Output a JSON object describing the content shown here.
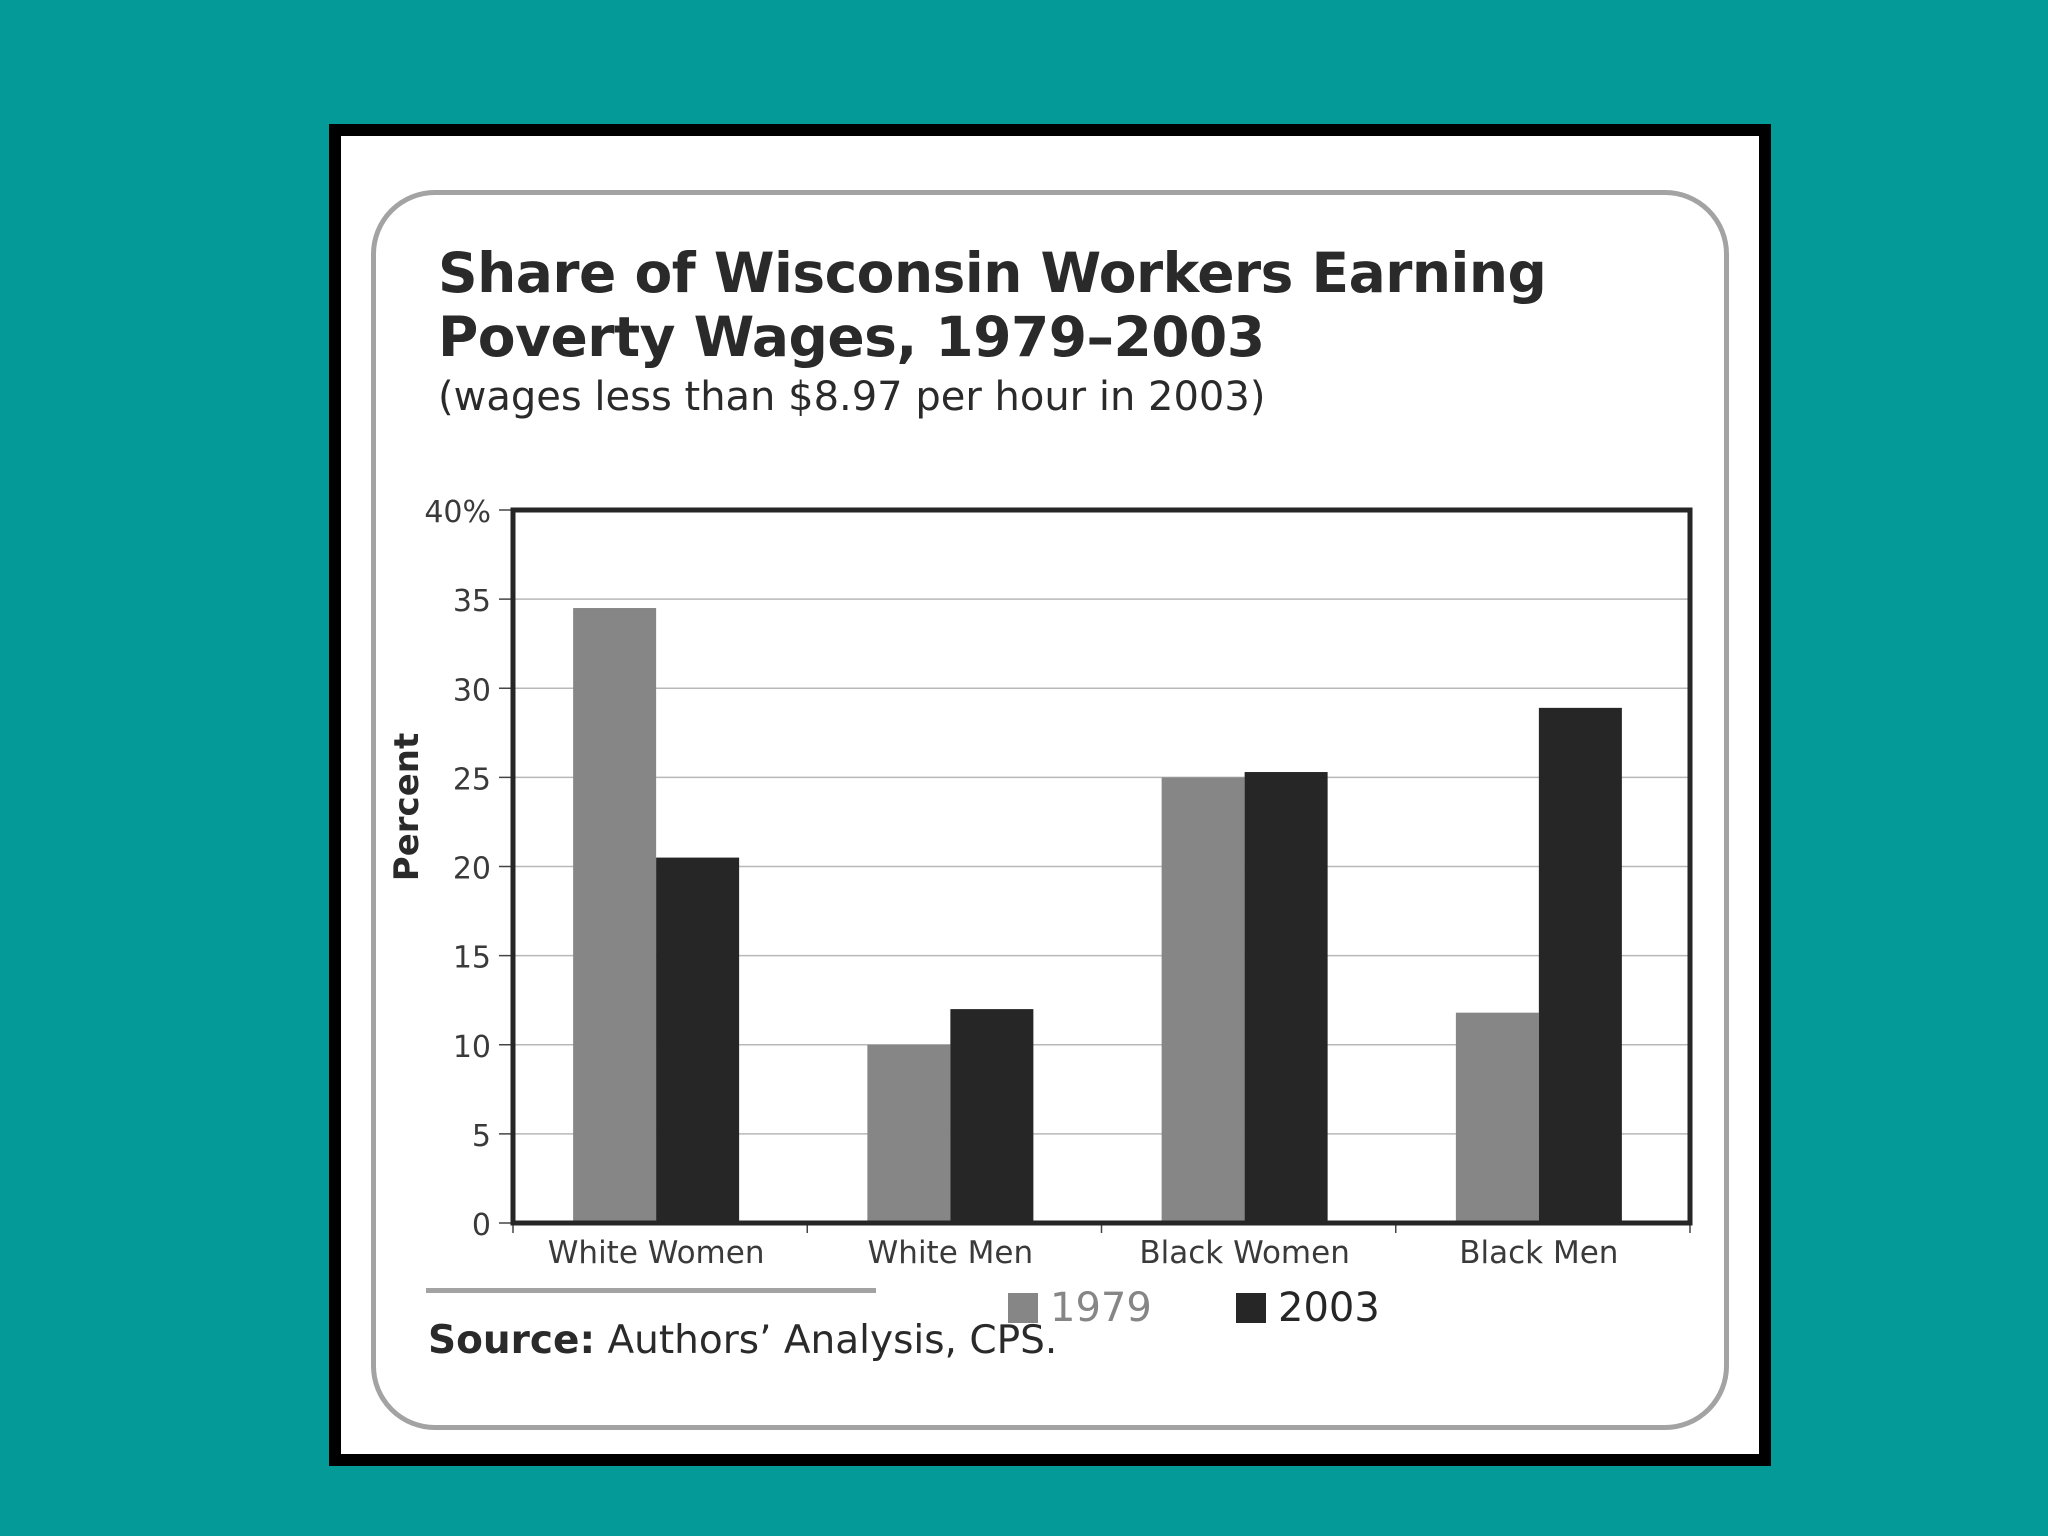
{
  "chart_data": {
    "type": "bar",
    "title": "Share of Wisconsin Workers Earning\nPoverty Wages, 1979–2003",
    "subtitle": "(wages less than $8.97 per hour in 2003)",
    "ylabel": "Percent",
    "xlabel": "",
    "categories": [
      "White Women",
      "White Men",
      "Black Women",
      "Black Men"
    ],
    "series": [
      {
        "name": "1979",
        "values": [
          34.5,
          10.0,
          25.0,
          11.8
        ],
        "color": "#868686"
      },
      {
        "name": "2003",
        "values": [
          20.5,
          12.0,
          25.3,
          28.9
        ],
        "color": "#262626"
      }
    ],
    "ylim": [
      0,
      40
    ],
    "yticks": [
      0,
      5,
      10,
      15,
      20,
      25,
      30,
      35,
      40
    ],
    "ytick_labels": [
      "0",
      "5",
      "10",
      "15",
      "20",
      "25",
      "30",
      "35",
      "40%"
    ],
    "grid": true,
    "legend_position": "bottom-center"
  },
  "source": {
    "label": "Source:",
    "text": " Authors’ Analysis, CPS."
  }
}
